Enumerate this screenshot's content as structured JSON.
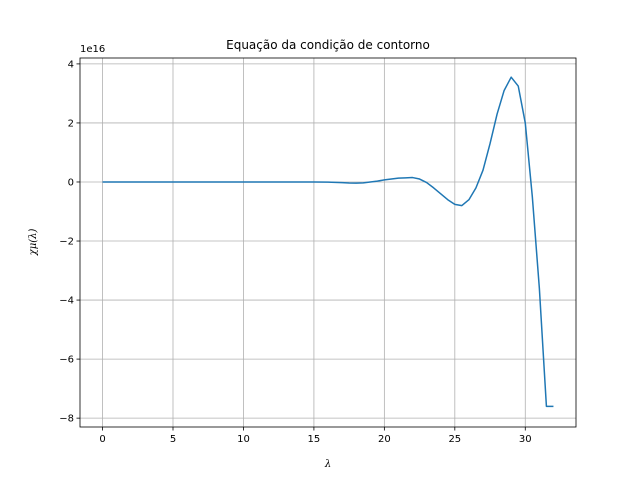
{
  "chart_data": {
    "type": "line",
    "title": "Equação da condição de contorno",
    "xlabel": "λ",
    "ylabel": "χμ(λ)",
    "offset_text": "1e16",
    "xlim": [
      -1.6,
      33.6
    ],
    "ylim": [
      -8.3,
      4.2
    ],
    "x_ticks": [
      0,
      5,
      10,
      15,
      20,
      25,
      30
    ],
    "x_tick_labels": [
      "0",
      "5",
      "10",
      "15",
      "20",
      "25",
      "30"
    ],
    "y_ticks": [
      -8,
      -6,
      -4,
      -2,
      0,
      2,
      4
    ],
    "y_tick_labels": [
      "−8",
      "−6",
      "−4",
      "−2",
      "0",
      "2",
      "4"
    ],
    "grid": true,
    "series": [
      {
        "color": "#1f77b4",
        "x": [
          0,
          2,
          4,
          6,
          8,
          10,
          12,
          14,
          15,
          16,
          17,
          17.5,
          18,
          18.5,
          19,
          19.5,
          20,
          20.5,
          21,
          21.5,
          22,
          22.5,
          23,
          23.5,
          24,
          24.5,
          25,
          25.5,
          26,
          26.5,
          27,
          27.5,
          28,
          28.5,
          29,
          29.5,
          30,
          30.5,
          31,
          31.5,
          32
        ],
        "y": [
          0,
          0,
          0,
          0,
          0,
          0,
          0,
          0,
          0,
          -0.005,
          -0.02,
          -0.035,
          -0.04,
          -0.03,
          0.0,
          0.03,
          0.07,
          0.1,
          0.13,
          0.14,
          0.15,
          0.1,
          -0.02,
          -0.2,
          -0.4,
          -0.6,
          -0.76,
          -0.8,
          -0.6,
          -0.2,
          0.4,
          1.3,
          2.3,
          3.1,
          3.55,
          3.25,
          2.0,
          -0.5,
          -3.6,
          -7.6,
          -7.6
        ]
      }
    ]
  }
}
